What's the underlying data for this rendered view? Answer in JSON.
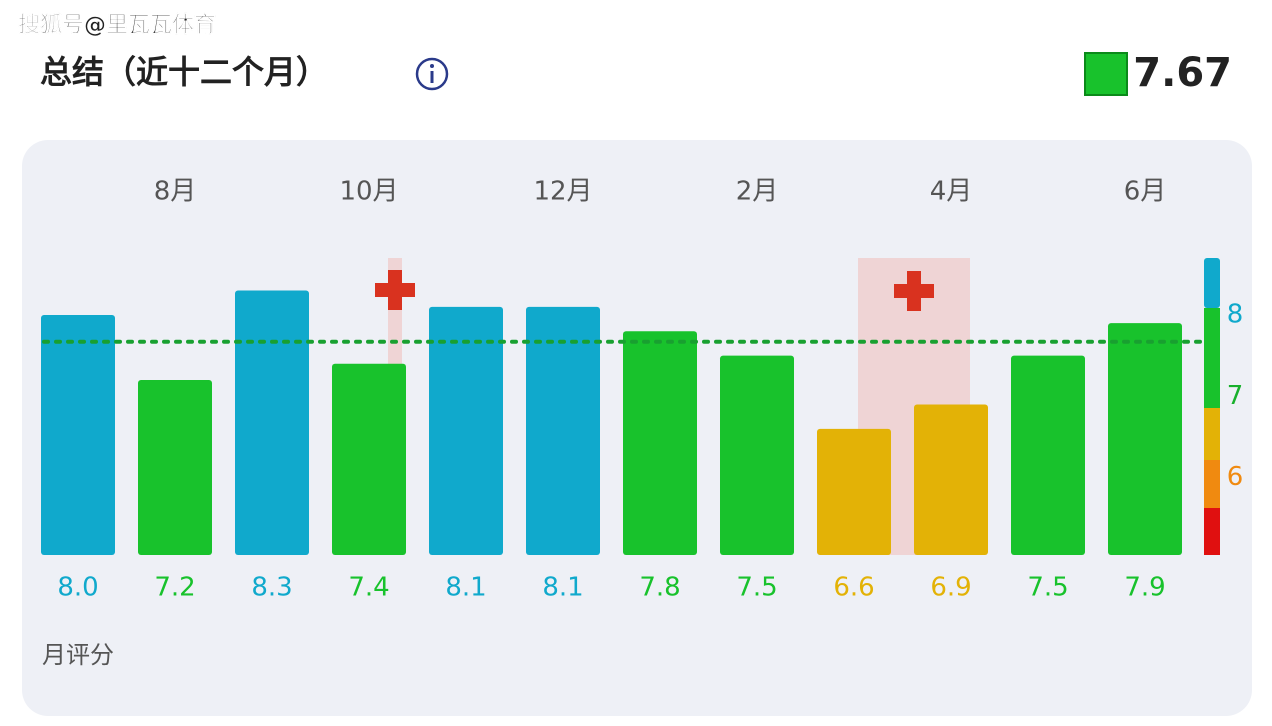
{
  "header": {
    "watermark": "搜狐号@里瓦瓦体育",
    "title": "总结（近十二个月）"
  },
  "chart_data": {
    "type": "bar",
    "categories": [
      null,
      "8月",
      null,
      "10月",
      null,
      "12月",
      null,
      "2月",
      null,
      "4月",
      null,
      "6月"
    ],
    "values": [
      8.0,
      7.2,
      8.3,
      7.4,
      8.1,
      8.1,
      7.8,
      7.5,
      6.6,
      6.9,
      7.5,
      7.9
    ],
    "value_labels": [
      "8.0",
      "7.2",
      "8.3",
      "7.4",
      "8.1",
      "8.1",
      "7.8",
      "7.5",
      "6.6",
      "6.9",
      "7.5",
      "7.9"
    ],
    "colors": [
      "#10a9cc",
      "#18c22c",
      "#10a9cc",
      "#18c22c",
      "#10a9cc",
      "#10a9cc",
      "#18c22c",
      "#18c22c",
      "#e3b206",
      "#e3b206",
      "#18c22c",
      "#18c22c"
    ],
    "average": 7.67,
    "average_color": "#18a030",
    "ylim": [
      5.05,
      8.7
    ],
    "yticks": [
      6,
      7,
      8
    ],
    "ytick_colors": [
      "#f08a10",
      "#18b02c",
      "#10a9cc"
    ],
    "xlabel": "月评分"
  }
}
